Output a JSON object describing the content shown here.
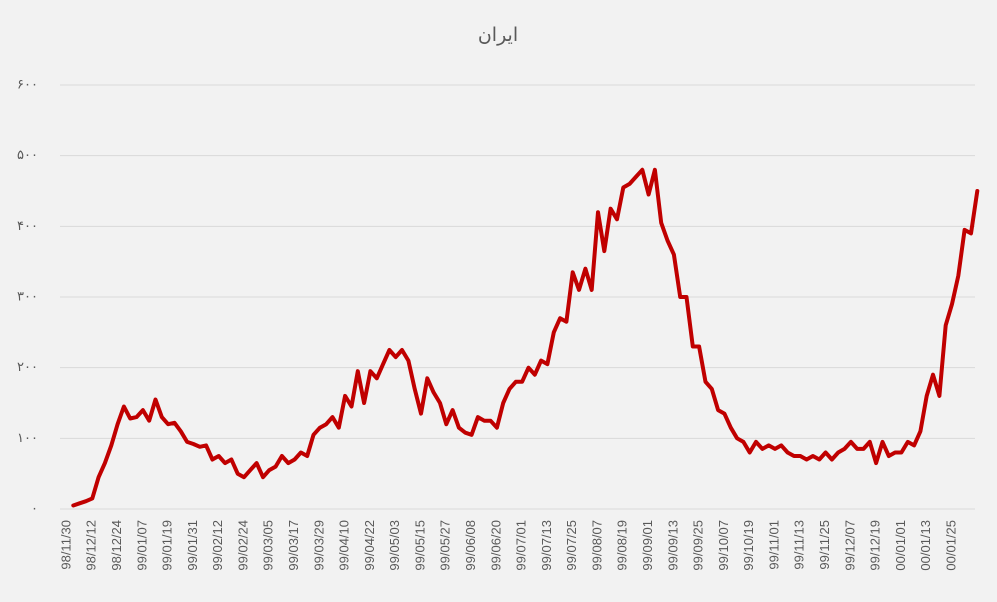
{
  "chart_data": {
    "type": "line",
    "title": "ایران",
    "categories": [
      "98/11/30",
      null,
      null,
      null,
      "98/12/12",
      null,
      null,
      null,
      "98/12/24",
      null,
      null,
      null,
      "99/01/07",
      null,
      null,
      null,
      "99/01/19",
      null,
      null,
      null,
      "99/01/31",
      null,
      null,
      null,
      "99/02/12",
      null,
      null,
      null,
      "99/02/24",
      null,
      null,
      null,
      "99/03/05",
      null,
      null,
      null,
      "99/03/17",
      null,
      null,
      null,
      "99/03/29",
      null,
      null,
      null,
      "99/04/10",
      null,
      null,
      null,
      "99/04/22",
      null,
      null,
      null,
      "99/05/03",
      null,
      null,
      null,
      "99/05/15",
      null,
      null,
      null,
      "99/05/27",
      null,
      null,
      null,
      "99/06/08",
      null,
      null,
      null,
      "99/06/20",
      null,
      null,
      null,
      "99/07/01",
      null,
      null,
      null,
      "99/07/13",
      null,
      null,
      null,
      "99/07/25",
      null,
      null,
      null,
      "99/08/07",
      null,
      null,
      null,
      "99/08/19",
      null,
      null,
      null,
      "99/09/01",
      null,
      null,
      null,
      "99/09/13",
      null,
      null,
      null,
      "99/09/25",
      null,
      null,
      null,
      "99/10/07",
      null,
      null,
      null,
      "99/10/19",
      null,
      null,
      null,
      "99/11/01",
      null,
      null,
      null,
      "99/11/13",
      null,
      null,
      null,
      "99/11/25",
      null,
      null,
      null,
      "99/12/07",
      null,
      null,
      null,
      "99/12/19",
      null,
      null,
      null,
      "00/01/01",
      null,
      null,
      null,
      "00/01/13",
      null,
      null,
      null,
      "00/01/25",
      null,
      null,
      null,
      null
    ],
    "values": [
      null,
      5,
      8,
      11,
      15,
      45,
      65,
      90,
      120,
      145,
      128,
      130,
      140,
      125,
      155,
      130,
      120,
      122,
      110,
      95,
      92,
      88,
      90,
      70,
      75,
      65,
      70,
      50,
      45,
      55,
      65,
      45,
      55,
      60,
      75,
      65,
      70,
      80,
      75,
      105,
      115,
      120,
      130,
      115,
      160,
      145,
      195,
      150,
      195,
      185,
      205,
      225,
      215,
      225,
      210,
      170,
      135,
      185,
      165,
      150,
      120,
      140,
      115,
      108,
      105,
      130,
      125,
      125,
      115,
      150,
      170,
      180,
      180,
      200,
      190,
      210,
      205,
      250,
      270,
      265,
      335,
      310,
      340,
      310,
      420,
      365,
      425,
      410,
      455,
      460,
      470,
      480,
      445,
      480,
      405,
      380,
      360,
      300,
      300,
      230,
      230,
      180,
      170,
      140,
      135,
      115,
      100,
      95,
      80,
      95,
      85,
      90,
      85,
      90,
      80,
      75,
      75,
      70,
      75,
      70,
      80,
      70,
      80,
      85,
      95,
      85,
      85,
      95,
      65,
      95,
      75,
      80,
      80,
      95,
      90,
      110,
      160,
      190,
      160,
      260,
      290,
      330,
      395,
      390,
      450
    ],
    "color": "#c00000",
    "ylim": [
      0,
      600
    ],
    "yticks": [
      {
        "value": 0,
        "label": "۰"
      },
      {
        "value": 100,
        "label": "۱۰۰"
      },
      {
        "value": 200,
        "label": "۲۰۰"
      },
      {
        "value": 300,
        "label": "۳۰۰"
      },
      {
        "value": 400,
        "label": "۴۰۰"
      },
      {
        "value": 500,
        "label": "۵۰۰"
      },
      {
        "value": 600,
        "label": "۶۰۰"
      }
    ],
    "grid": true
  }
}
